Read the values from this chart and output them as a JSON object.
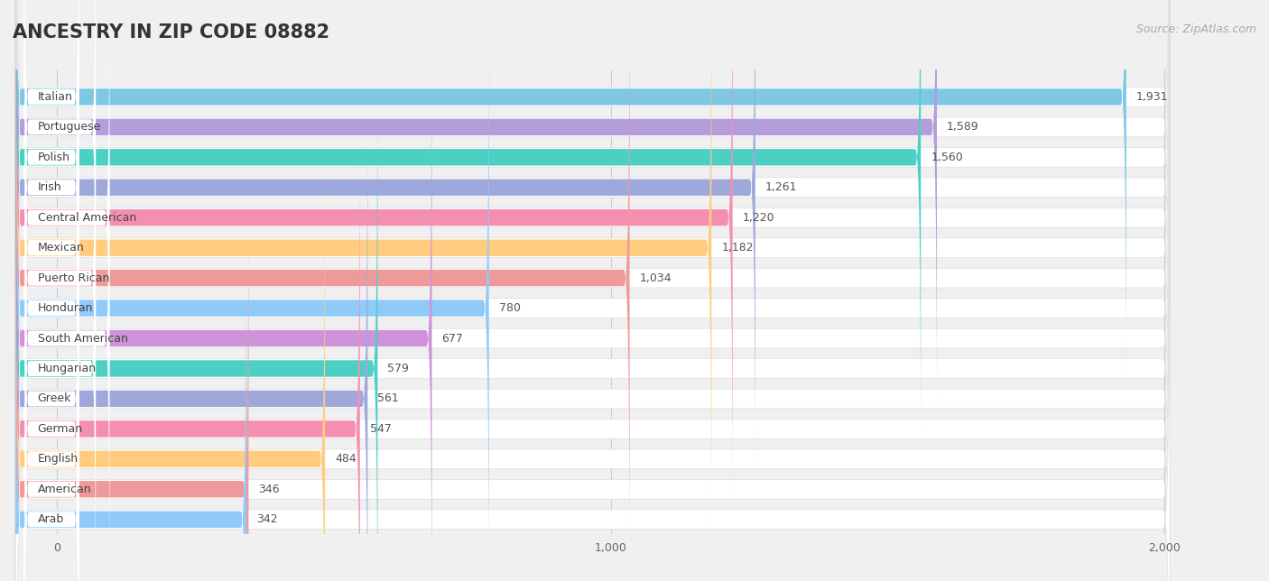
{
  "title": "ANCESTRY IN ZIP CODE 08882",
  "source": "Source: ZipAtlas.com",
  "categories": [
    "Italian",
    "Portuguese",
    "Polish",
    "Irish",
    "Central American",
    "Mexican",
    "Puerto Rican",
    "Honduran",
    "South American",
    "Hungarian",
    "Greek",
    "German",
    "English",
    "American",
    "Arab"
  ],
  "values": [
    1931,
    1589,
    1560,
    1261,
    1220,
    1182,
    1034,
    780,
    677,
    579,
    561,
    547,
    484,
    346,
    342
  ],
  "colors": [
    "#7ec8e3",
    "#b39ddb",
    "#4dd0c4",
    "#9fa8da",
    "#f48fb1",
    "#ffcc80",
    "#ef9a9a",
    "#90caf9",
    "#ce93d8",
    "#4dd0c4",
    "#9fa8da",
    "#f48fb1",
    "#ffcc80",
    "#ef9a9a",
    "#90caf9"
  ],
  "xlim_max": 2000,
  "xticks": [
    0,
    1000,
    2000
  ],
  "background_color": "#f0f0f0",
  "row_bg_color": "#ffffff",
  "title_fontsize": 15,
  "source_fontsize": 9,
  "label_fontsize": 9,
  "value_fontsize": 9
}
